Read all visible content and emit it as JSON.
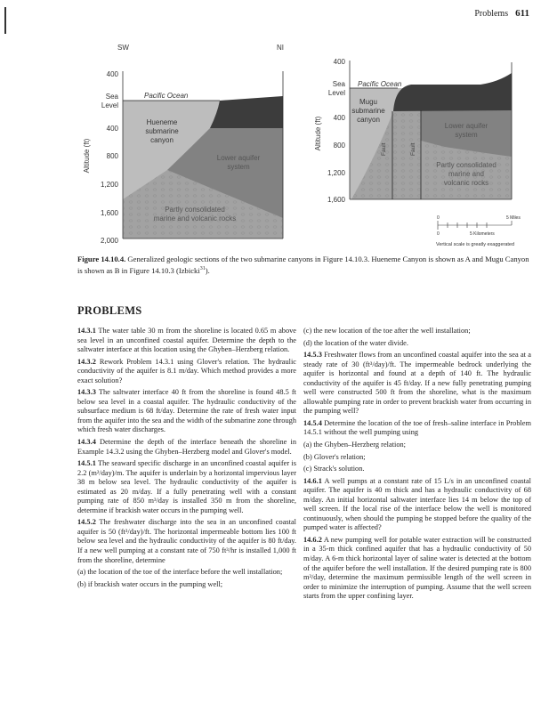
{
  "running_head": {
    "section": "Problems",
    "page_number": "611"
  },
  "figure": {
    "left_panel": {
      "direction_left": "SW",
      "direction_right": "NI",
      "axis_label": "Altitude (ft)",
      "ticks": [
        "400",
        "Sea",
        "Level",
        "400",
        "800",
        "1,200",
        "1,600",
        "2,000"
      ],
      "labels": {
        "ocean": "Pacific Ocean",
        "canyon": [
          "Hueneme",
          "submarine",
          "canyon"
        ],
        "lower": [
          "Lower aquifer",
          "system"
        ],
        "rocks": [
          "Partly consolidated",
          "marine and volcanic rocks"
        ]
      }
    },
    "right_panel": {
      "axis_label": "Altitude (ft)",
      "ticks": [
        "400",
        "Sea",
        "Level",
        "400",
        "800",
        "1,200",
        "1,600"
      ],
      "labels": {
        "ocean": "Pacific Ocean",
        "canyon": [
          "Mugu",
          "submarine",
          "canyon"
        ],
        "lower": [
          "Lower aquifer",
          "system"
        ],
        "rocks": [
          "Partly consolidated",
          "marine and",
          "volcanic rocks"
        ],
        "fault": "Fault"
      },
      "scale": {
        "zero": "0",
        "miles": "5 Miles",
        "km": "5 Kilometers",
        "note": "Vertical scale is greatly exaggerated"
      }
    },
    "caption_label": "Figure 14.10.4.",
    "caption_text": "Generalized geologic sections of the two submarine canyons in Figure 14.10.3. Hueneme Canyon is shown as A and Mugu Canyon is shown as B in Figure 14.10.3 (Izbicki",
    "caption_ref": "31",
    "caption_end": ")."
  },
  "heading": "PROBLEMS",
  "left_column": [
    {
      "num": "14.3.1",
      "text": "The water table 30 m from the shoreline is located 0.65 m above sea level in an unconfined coastal aquifer. Determine the depth to the saltwater interface at this location using the Ghyben–Herzberg relation."
    },
    {
      "num": "14.3.2",
      "text": "Rework Problem 14.3.1 using Glover's relation. The hydraulic conductivity of the aquifer is 8.1 m/day. Which method provides a more exact solution?"
    },
    {
      "num": "14.3.3",
      "text": "The saltwater interface 40 ft from the shoreline is found 48.5 ft below sea level in a coastal aquifer. The hydraulic conductivity of the subsurface medium is 68 ft/day. Determine the rate of fresh water input from the aquifer into the sea and the width of the submarine zone through which fresh water discharges."
    },
    {
      "num": "14.3.4",
      "text": "Determine the depth of the interface beneath the shoreline in Example 14.3.2 using the Ghyben–Herzberg model and Glover's model."
    },
    {
      "num": "14.5.1",
      "text": "The seaward specific discharge in an unconfined coastal aquifer is 2.2 (m²/day)/m. The aquifer is underlain by a horizontal impervious layer 38 m below sea level. The hydraulic conductivity of the aquifer is estimated as 20 m/day. If a fully penetrating well with a constant pumping rate of 850 m³/day is installed 350 m from the shoreline, determine if brackish water occurs in the pumping well."
    },
    {
      "num": "14.5.2",
      "text": "The freshwater discharge into the sea in an unconfined coastal aquifer is 50 (ft³/day)/ft. The horizontal impermeable bottom lies 100 ft below sea level and the hydraulic conductivity of the aquifer is 80 ft/day. If a new well pumping at a constant rate of 750 ft³/hr is installed 1,000 ft from the shoreline, determine"
    },
    {
      "num": "",
      "text": "(a) the location of the toe of the interface before the well installation;"
    },
    {
      "num": "",
      "text": "(b) if brackish water occurs in the pumping well;"
    }
  ],
  "right_column": [
    {
      "num": "",
      "text": "(c) the new location of the toe after the well installation;"
    },
    {
      "num": "",
      "text": "(d) the location of the water divide."
    },
    {
      "num": "14.5.3",
      "text": "Freshwater flows from an unconfined coastal aquifer into the sea at a steady rate of 30 (ft³/day)/ft. The impermeable bedrock underlying the aquifer is horizontal and found at a depth of 140 ft. The hydraulic conductivity of the aquifer is 45 ft/day. If a new fully penetrating pumping well were constructed 500 ft from the shoreline, what is the maximum allowable pumping rate in order to prevent brackish water from occurring in the pumping well?"
    },
    {
      "num": "14.5.4",
      "text": "Determine the location of the toe of fresh–saline interface in Problem 14.5.1 without the well pumping using"
    },
    {
      "num": "",
      "text": "(a) the Ghyben–Herzberg relation;"
    },
    {
      "num": "",
      "text": "(b) Glover's relation;"
    },
    {
      "num": "",
      "text": "(c) Strack's solution."
    },
    {
      "num": "14.6.1",
      "text": "A well pumps at a constant rate of 15 L/s in an unconfined coastal aquifer. The aquifer is 40 m thick and has a hydraulic conductivity of 68 m/day. An initial horizontal saltwater interface lies 14 m below the top of well screen. If the local rise of the interface below the well is monitored continuously, when should the pumping be stopped before the quality of the pumped water is affected?"
    },
    {
      "num": "14.6.2",
      "text": "A new pumping well for potable water extraction will be constructed in a 35-m thick confined aquifer that has a hydraulic conductivity of 50 m/day. A 6-m thick horizontal layer of saline water is detected at the bottom of the aquifer before the well installation. If the desired pumping rate is 800 m³/day, determine the maximum permissible length of the well screen in order to minimize the interruption of pumping. Assume that the well screen starts from the upper confining layer."
    }
  ]
}
